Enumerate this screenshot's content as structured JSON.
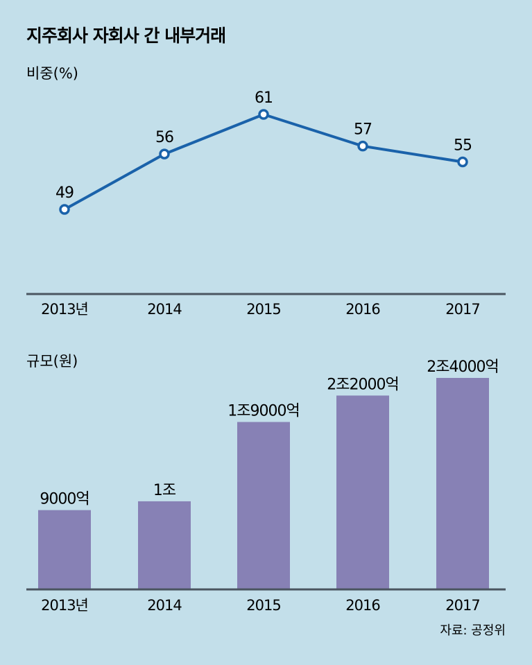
{
  "title": "지주회사 자회사 간 내부거래",
  "source": "자료: 공정위",
  "colors": {
    "background": "#c3dfea",
    "line": "#1a62aa",
    "bar": "#8781b5",
    "axis": "#4a5560"
  },
  "chart_data": [
    {
      "type": "line",
      "unit_label": "비중(%)",
      "categories": [
        "2013년",
        "2014",
        "2015",
        "2016",
        "2017"
      ],
      "values": [
        49,
        56,
        61,
        57,
        55
      ],
      "data_labels": [
        "49",
        "56",
        "61",
        "57",
        "55"
      ],
      "ylim": [
        42,
        61
      ],
      "grid": false,
      "legend": "none"
    },
    {
      "type": "bar",
      "unit_label": "규모(원)",
      "categories": [
        "2013년",
        "2014",
        "2015",
        "2016",
        "2017"
      ],
      "values": [
        9000,
        10000,
        19000,
        22000,
        24000
      ],
      "value_unit": "억원",
      "data_labels": [
        "9000억",
        "1조",
        "1조9000억",
        "2조2000억",
        "2조4000억"
      ],
      "ylim": [
        0,
        24000
      ],
      "grid": false,
      "legend": "none"
    }
  ]
}
